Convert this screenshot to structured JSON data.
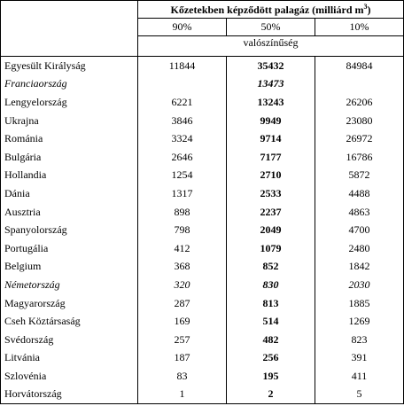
{
  "header": {
    "title": "Kőzetekben képződött palagáz (milliárd m",
    "title_sup": "3",
    "title_end": ")",
    "columns": [
      "90%",
      "50%",
      "10%"
    ],
    "subtitle": "valószínűség"
  },
  "rows": [
    {
      "name": "Egyesült Királyság",
      "values": [
        11844,
        35432,
        84984
      ]
    },
    {
      "name": "Franciaország",
      "values": [
        null,
        13473,
        null
      ],
      "italic": true
    },
    {
      "name": "Lengyelország",
      "values": [
        6221,
        13243,
        26206
      ]
    },
    {
      "name": "Ukrajna",
      "values": [
        3846,
        9949,
        23080
      ]
    },
    {
      "name": "Románia",
      "values": [
        3324,
        9714,
        26972
      ]
    },
    {
      "name": "Bulgária",
      "values": [
        2646,
        7177,
        16786
      ]
    },
    {
      "name": "Hollandia",
      "values": [
        1254,
        2710,
        5872
      ]
    },
    {
      "name": "Dánia",
      "values": [
        1317,
        2533,
        4488
      ]
    },
    {
      "name": "Ausztria",
      "values": [
        898,
        2237,
        4863
      ]
    },
    {
      "name": "Spanyolország",
      "values": [
        798,
        2049,
        4700
      ]
    },
    {
      "name": "Portugália",
      "values": [
        412,
        1079,
        2480
      ]
    },
    {
      "name": "Belgium",
      "values": [
        368,
        852,
        1842
      ]
    },
    {
      "name": "Németország",
      "values": [
        320,
        830,
        2030
      ],
      "italic": true
    },
    {
      "name": "Magyarország",
      "values": [
        287,
        813,
        1885
      ]
    },
    {
      "name": "Cseh Köztársaság",
      "values": [
        169,
        514,
        1269
      ]
    },
    {
      "name": "Svédország",
      "values": [
        257,
        482,
        823
      ]
    },
    {
      "name": "Litvánia",
      "values": [
        187,
        256,
        391
      ]
    },
    {
      "name": "Szlovénia",
      "values": [
        83,
        195,
        411
      ]
    },
    {
      "name": "Horvátország",
      "values": [
        1,
        2,
        5
      ]
    }
  ]
}
